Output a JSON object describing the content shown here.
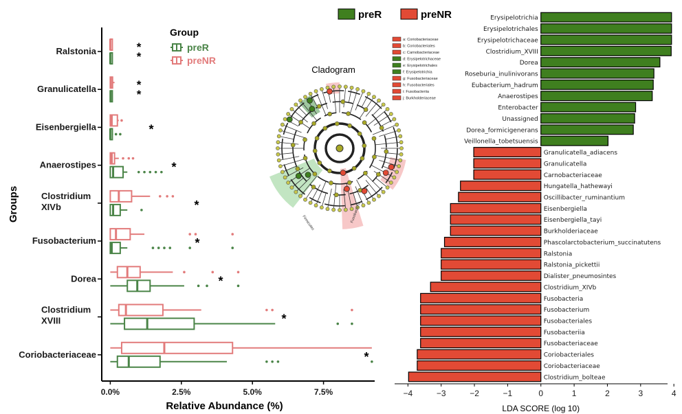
{
  "colors": {
    "preR": "#4a8447",
    "preNR": "#e27b7b",
    "ldaR": "#3f7f1f",
    "ldaNR": "#e24a35",
    "axis": "#000000"
  },
  "chart_data": [
    {
      "type": "box",
      "xlabel": "Relative Abundance (%)",
      "ylabel": "Groups",
      "xticks": [
        "0.0%",
        "2.5%",
        "5.0%",
        "7.5%"
      ],
      "xlim": [
        -0.3,
        9.3
      ],
      "legend": {
        "title": "Group",
        "entries": [
          "preR",
          "preNR"
        ],
        "position": "top-right"
      },
      "groups": [
        {
          "label": "Ralstonia",
          "sig": "**",
          "preNR": {
            "q1": 0,
            "median": 0,
            "q3": 0.02,
            "wmin": 0,
            "wmax": 0.03,
            "outliers": []
          },
          "preR": {
            "q1": 0,
            "median": 0,
            "q3": 0.01,
            "wmin": 0,
            "wmax": 0.01,
            "outliers": []
          }
        },
        {
          "label": "Granulicatella",
          "sig": "**",
          "preNR": {
            "q1": 0,
            "median": 0.02,
            "q3": 0.08,
            "wmin": 0,
            "wmax": 0.15,
            "outliers": []
          },
          "preR": {
            "q1": 0,
            "median": 0.01,
            "q3": 0.04,
            "wmin": 0,
            "wmax": 0.08,
            "outliers": []
          }
        },
        {
          "label": "Eisenbergiella",
          "sig": "*",
          "preNR": {
            "q1": 0,
            "median": 0.05,
            "q3": 0.25,
            "wmin": 0,
            "wmax": 0.3,
            "outliers": [
              0.4
            ]
          },
          "preR": {
            "q1": 0,
            "median": 0,
            "q3": 0.05,
            "wmin": 0,
            "wmax": 0.1,
            "outliers": [
              0.2,
              0.35
            ]
          }
        },
        {
          "label": "Anaerostipes",
          "sig": "*",
          "preNR": {
            "q1": 0,
            "median": 0.05,
            "q3": 0.15,
            "wmin": 0,
            "wmax": 0.3,
            "outliers": [
              0.45,
              0.65,
              0.8
            ]
          },
          "preR": {
            "q1": 0,
            "median": 0.1,
            "q3": 0.45,
            "wmin": 0,
            "wmax": 0.6,
            "outliers": [
              1.0,
              1.2,
              1.4,
              1.6,
              1.8
            ]
          }
        },
        {
          "label": "Clostridium XIVb",
          "sig": "*",
          "preNR": {
            "q1": 0,
            "median": 0.3,
            "q3": 0.75,
            "wmin": 0,
            "wmax": 1.4,
            "outliers": [
              1.75,
              2.0,
              2.2
            ]
          },
          "preR": {
            "q1": 0,
            "median": 0.1,
            "q3": 0.35,
            "wmin": 0,
            "wmax": 0.6,
            "outliers": [
              1.1
            ]
          }
        },
        {
          "label": "Fusobacterium",
          "sig": "*",
          "preNR": {
            "q1": 0,
            "median": 0.2,
            "q3": 0.7,
            "wmin": 0,
            "wmax": 1.2,
            "outliers": [
              2.8,
              3.0,
              4.3
            ]
          },
          "preR": {
            "q1": 0,
            "median": 0.05,
            "q3": 0.35,
            "wmin": 0,
            "wmax": 0.6,
            "outliers": [
              1.5,
              1.7,
              1.9,
              2.1,
              2.8,
              4.3
            ]
          }
        },
        {
          "label": "Dorea",
          "sig": "*",
          "preNR": {
            "q1": 0.25,
            "median": 0.6,
            "q3": 1.05,
            "wmin": 0,
            "wmax": 2.2,
            "outliers": [
              2.6,
              3.6,
              4.5
            ]
          },
          "preR": {
            "q1": 0.6,
            "median": 0.95,
            "q3": 1.4,
            "wmin": 0,
            "wmax": 2.6,
            "outliers": [
              3.1,
              3.4,
              4.5
            ]
          }
        },
        {
          "label": "Clostridium XVIII",
          "sig": "*",
          "preNR": {
            "q1": 0.3,
            "median": 0.55,
            "q3": 1.85,
            "wmin": 0,
            "wmax": 3.2,
            "outliers": [
              5.5,
              5.7,
              8.5
            ]
          },
          "preR": {
            "q1": 0.5,
            "median": 1.3,
            "q3": 2.95,
            "wmin": 0,
            "wmax": 5.8,
            "outliers": [
              8.0,
              8.5
            ]
          }
        },
        {
          "label": "Coriobacteriaceae",
          "sig": "*",
          "preNR": {
            "q1": 0.4,
            "median": 1.9,
            "q3": 4.3,
            "wmin": 0,
            "wmax": 9.2,
            "outliers": []
          },
          "preR": {
            "q1": 0.25,
            "median": 0.65,
            "q3": 1.75,
            "wmin": 0,
            "wmax": 4.1,
            "outliers": [
              5.5,
              5.7,
              5.9,
              9.2
            ]
          }
        }
      ]
    },
    {
      "type": "bar",
      "orientation": "horizontal",
      "xlabel": "LDA SCORE (log 10)",
      "xlim": [
        -4.4,
        4.1
      ],
      "xticks": [
        "-4",
        "-3",
        "-2",
        "-1",
        "0",
        "1",
        "2",
        "3",
        "4"
      ],
      "legend": {
        "entries": [
          "preR",
          "preNR"
        ],
        "position": "top"
      },
      "bars": [
        {
          "label": "Erysipelotrichia",
          "value": 3.93,
          "group": "preR"
        },
        {
          "label": "Erysipelotrichales",
          "value": 3.93,
          "group": "preR"
        },
        {
          "label": "Erysipelotrichaceae",
          "value": 3.93,
          "group": "preR"
        },
        {
          "label": "Clostridium_XVIII",
          "value": 3.92,
          "group": "preR"
        },
        {
          "label": "Dorea",
          "value": 3.58,
          "group": "preR"
        },
        {
          "label": "Roseburia_inulinivorans",
          "value": 3.4,
          "group": "preR"
        },
        {
          "label": "Eubacterium_hadrum",
          "value": 3.38,
          "group": "preR"
        },
        {
          "label": "Anaerostipes",
          "value": 3.35,
          "group": "preR"
        },
        {
          "label": "Enterobacter",
          "value": 2.85,
          "group": "preR"
        },
        {
          "label": "Unassigned",
          "value": 2.82,
          "group": "preR"
        },
        {
          "label": "Dorea_formicigenerans",
          "value": 2.78,
          "group": "preR"
        },
        {
          "label": "Veillonella_tobetsuensis",
          "value": 2.02,
          "group": "preR"
        },
        {
          "label": "Granulicatella_adiacens",
          "value": -2.02,
          "group": "preNR"
        },
        {
          "label": "Granulicatella",
          "value": -2.02,
          "group": "preNR"
        },
        {
          "label": "Carnobacteriaceae",
          "value": -2.02,
          "group": "preNR"
        },
        {
          "label": "Hungatella_hathewayi",
          "value": -2.42,
          "group": "preNR"
        },
        {
          "label": "Oscillibacter_ruminantium",
          "value": -2.48,
          "group": "preNR"
        },
        {
          "label": "Eisenbergiella",
          "value": -2.72,
          "group": "preNR"
        },
        {
          "label": "Eisenbergiella_tayi",
          "value": -2.72,
          "group": "preNR"
        },
        {
          "label": "Burkholderiaceae",
          "value": -2.72,
          "group": "preNR"
        },
        {
          "label": "Phascolarctobacterium_succinatutens",
          "value": -2.9,
          "group": "preNR"
        },
        {
          "label": "Ralstonia",
          "value": -3.0,
          "group": "preNR"
        },
        {
          "label": "Ralstonia_pickettii",
          "value": -3.0,
          "group": "preNR"
        },
        {
          "label": "Dialister_pneumosintes",
          "value": -3.0,
          "group": "preNR"
        },
        {
          "label": "Clostridium_XIVb",
          "value": -3.32,
          "group": "preNR"
        },
        {
          "label": "Fusobacteria",
          "value": -3.62,
          "group": "preNR"
        },
        {
          "label": "Fusobacterium",
          "value": -3.62,
          "group": "preNR"
        },
        {
          "label": "Fusobacteriales",
          "value": -3.62,
          "group": "preNR"
        },
        {
          "label": "Fusobacteriia",
          "value": -3.62,
          "group": "preNR"
        },
        {
          "label": "Fusobacteriaceae",
          "value": -3.62,
          "group": "preNR"
        },
        {
          "label": "Coriobacteriales",
          "value": -3.72,
          "group": "preNR"
        },
        {
          "label": "Coriobacteriaceae",
          "value": -3.72,
          "group": "preNR"
        },
        {
          "label": "Clostridium_bolteae",
          "value": -3.98,
          "group": "preNR"
        }
      ]
    },
    {
      "type": "cladogram",
      "title": "Cladogram",
      "legend_entries": [
        {
          "key": "a",
          "label": "Coriobacteriaceae",
          "group": "preNR"
        },
        {
          "key": "b",
          "label": "Coriobacteriales",
          "group": "preNR"
        },
        {
          "key": "c",
          "label": "Carnobacteriaceae",
          "group": "preNR"
        },
        {
          "key": "d",
          "label": "Erysipelotrichaceae",
          "group": "preR"
        },
        {
          "key": "e",
          "label": "Erysipelotrichales",
          "group": "preR"
        },
        {
          "key": "f",
          "label": "Erysipelotrichia",
          "group": "preR"
        },
        {
          "key": "g",
          "label": "Fusobacteriaceae",
          "group": "preNR"
        },
        {
          "key": "h",
          "label": "Fusobacteriales",
          "group": "preNR"
        },
        {
          "key": "i",
          "label": "Fusobacteriia",
          "group": "preNR"
        },
        {
          "key": "j",
          "label": "Burkholderiaceae",
          "group": "preNR"
        }
      ],
      "sector_labels": [
        "Fusobacteria",
        "Firmicutes"
      ]
    }
  ]
}
